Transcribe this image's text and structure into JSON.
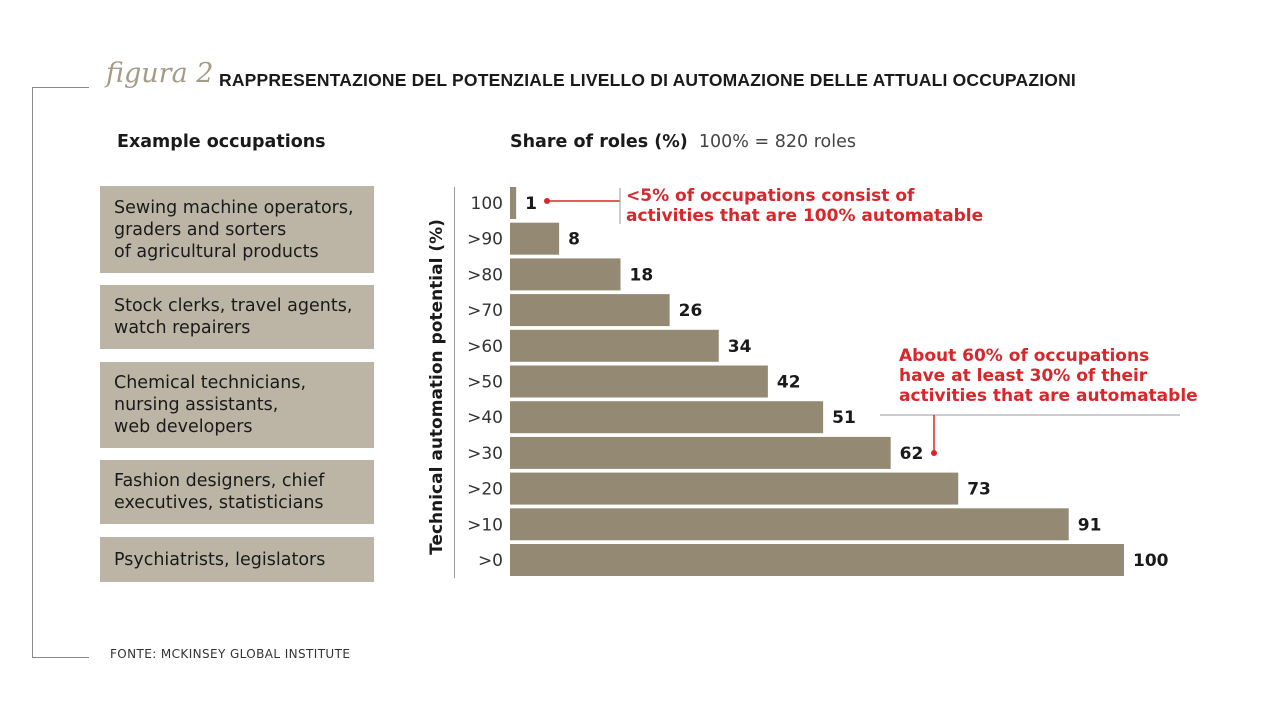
{
  "figure": {
    "label": "figura 2",
    "title": "RAPPRESENTAZIONE DEL POTENZIALE LIVELLO DI AUTOMAZIONE DELLE ATTUALI OCCUPAZIONI"
  },
  "occupations": {
    "header": "Example occupations",
    "items": [
      "Sewing machine operators,\ngraders and sorters\nof agricultural products",
      "Stock clerks, travel agents,\nwatch repairers",
      "Chemical technicians,\nnursing assistants,\nweb developers",
      "Fashion designers, chief\nexecutives, statisticians",
      "Psychiatrists, legislators"
    ]
  },
  "share_header": {
    "bold": "Share of roles (%)",
    "note": "100% = 820 roles"
  },
  "annotations": {
    "top": "<5% of occupations consist of\nactivities that are 100% automatable",
    "middle": "About 60% of occupations\nhave at least 30% of their\nactivities that are automatable"
  },
  "source": "FONTE: MCKINSEY GLOBAL INSTITUTE",
  "colors": {
    "bar": "#948a74",
    "box": "#bcb5a6",
    "accent": "#d8262b",
    "figure_label": "#a59c88"
  },
  "chart_data": {
    "type": "bar",
    "orientation": "horizontal",
    "ylabel": "Technical automation potential (%)",
    "categories": [
      "100",
      ">90",
      ">80",
      ">70",
      ">60",
      ">50",
      ">40",
      ">30",
      ">20",
      ">10",
      ">0"
    ],
    "values": [
      1,
      8,
      18,
      26,
      34,
      42,
      51,
      62,
      73,
      91,
      100
    ],
    "xlim": [
      0,
      100
    ],
    "grid": false,
    "legend": "none"
  }
}
